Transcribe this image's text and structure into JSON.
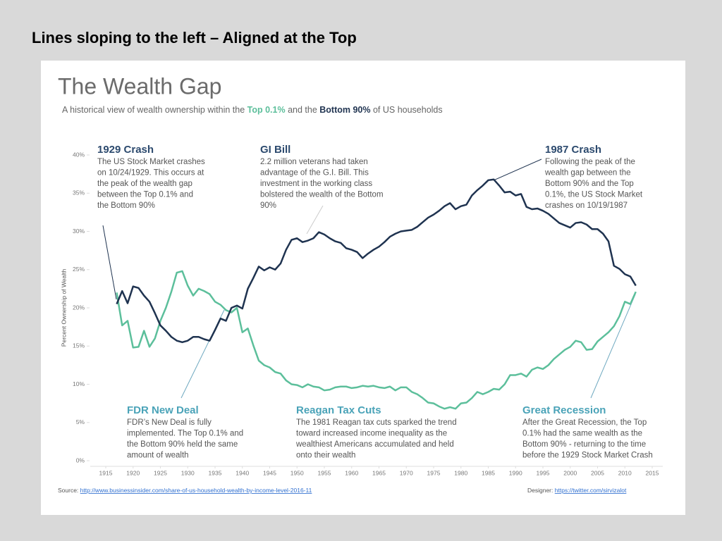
{
  "slide_title": "Lines sloping to the left – Aligned at the Top",
  "chart_data": {
    "type": "line",
    "title": "The Wealth Gap",
    "subtitle_parts": [
      "A historical view of wealth ownership within the ",
      "Top 0.1%",
      " and the ",
      "Bottom 90%",
      " of US households"
    ],
    "y_axis_label": "Percent Ownership of Wealth",
    "x": [
      1917,
      1918,
      1919,
      1920,
      1921,
      1922,
      1923,
      1924,
      1925,
      1926,
      1927,
      1928,
      1929,
      1930,
      1931,
      1932,
      1933,
      1934,
      1935,
      1936,
      1937,
      1938,
      1939,
      1940,
      1941,
      1942,
      1943,
      1944,
      1945,
      1946,
      1947,
      1948,
      1949,
      1950,
      1951,
      1952,
      1953,
      1954,
      1955,
      1956,
      1957,
      1958,
      1959,
      1960,
      1961,
      1962,
      1963,
      1964,
      1965,
      1966,
      1967,
      1968,
      1969,
      1970,
      1971,
      1972,
      1973,
      1974,
      1975,
      1976,
      1977,
      1978,
      1979,
      1980,
      1981,
      1982,
      1983,
      1984,
      1985,
      1986,
      1987,
      1988,
      1989,
      1990,
      1991,
      1992,
      1993,
      1994,
      1995,
      1996,
      1997,
      1998,
      1999,
      2000,
      2001,
      2002,
      2003,
      2004,
      2005,
      2006,
      2007,
      2008,
      2009,
      2010,
      2011,
      2012
    ],
    "series": [
      {
        "name": "Bottom 90%",
        "color": "#1f3350",
        "values": [
          20.5,
          22.2,
          20.6,
          22.8,
          22.6,
          21.6,
          20.8,
          19.3,
          17.7,
          17.0,
          16.2,
          15.7,
          15.5,
          15.7,
          16.2,
          16.2,
          15.9,
          15.7,
          17.1,
          18.6,
          18.3,
          20.0,
          20.3,
          19.9,
          22.5,
          23.9,
          25.4,
          24.9,
          25.3,
          25.0,
          25.8,
          27.6,
          28.9,
          29.1,
          28.6,
          28.8,
          29.1,
          29.9,
          29.6,
          29.1,
          28.7,
          28.5,
          27.8,
          27.6,
          27.3,
          26.5,
          27.1,
          27.6,
          28.0,
          28.6,
          29.3,
          29.7,
          30.0,
          30.1,
          30.2,
          30.6,
          31.2,
          31.8,
          32.2,
          32.7,
          33.3,
          33.7,
          32.9,
          33.3,
          33.5,
          34.7,
          35.4,
          36.0,
          36.7,
          36.8,
          36.0,
          35.1,
          35.2,
          34.7,
          34.9,
          33.2,
          32.9,
          33.0,
          32.7,
          32.3,
          31.7,
          31.1,
          30.8,
          30.5,
          31.1,
          31.2,
          30.9,
          30.3,
          30.3,
          29.7,
          28.7,
          25.5,
          25.1,
          24.4,
          24.1,
          22.9
        ]
      },
      {
        "name": "Top 0.1%",
        "color": "#5cbf9b",
        "values": [
          22.0,
          17.7,
          18.3,
          14.8,
          14.9,
          17.0,
          14.9,
          16.0,
          18.3,
          20.0,
          22.1,
          24.6,
          24.8,
          22.9,
          21.6,
          22.5,
          22.2,
          21.8,
          20.8,
          20.4,
          19.7,
          19.4,
          20.0,
          16.8,
          17.3,
          15.1,
          13.1,
          12.5,
          12.2,
          11.6,
          11.4,
          10.5,
          10.0,
          9.9,
          9.6,
          10.0,
          9.7,
          9.6,
          9.2,
          9.3,
          9.6,
          9.7,
          9.7,
          9.5,
          9.6,
          9.8,
          9.7,
          9.8,
          9.6,
          9.5,
          9.7,
          9.2,
          9.6,
          9.6,
          9.0,
          8.7,
          8.2,
          7.6,
          7.5,
          7.1,
          6.8,
          7.0,
          6.8,
          7.5,
          7.6,
          8.2,
          9.0,
          8.7,
          9.0,
          9.4,
          9.3,
          10.0,
          11.2,
          11.2,
          11.4,
          11.0,
          11.9,
          12.2,
          12.0,
          12.5,
          13.3,
          13.9,
          14.5,
          14.9,
          15.7,
          15.5,
          14.5,
          14.6,
          15.6,
          16.2,
          16.8,
          17.6,
          18.9,
          20.8,
          20.5,
          22.1
        ]
      }
    ],
    "xlim": [
      1912,
      2017
    ],
    "xticks": [
      1915,
      1920,
      1925,
      1930,
      1935,
      1940,
      1945,
      1950,
      1955,
      1960,
      1965,
      1970,
      1975,
      1980,
      1985,
      1990,
      1995,
      2000,
      2005,
      2010,
      2015
    ],
    "ylim": [
      0,
      40
    ],
    "yticks": [
      {
        "value": 0,
        "label": "0%"
      },
      {
        "value": 5,
        "label": "5%"
      },
      {
        "value": 10,
        "label": "10%"
      },
      {
        "value": 15,
        "label": "15%"
      },
      {
        "value": 20,
        "label": "20%"
      },
      {
        "value": 25,
        "label": "25%"
      },
      {
        "value": 30,
        "label": "30%"
      },
      {
        "value": 35,
        "label": "35%"
      },
      {
        "value": 40,
        "label": "40%"
      }
    ],
    "annotations": [
      {
        "title": "1929 Crash",
        "lines": [
          "The US Stock Market crashes",
          "on 10/24/1929. This occurs at",
          "the peak of the wealth gap",
          "between the Top 0.1% and",
          "the Bottom 90%"
        ]
      },
      {
        "title": "GI Bill",
        "lines": [
          "2.2 million veterans had taken",
          "advantage of the G.I. Bill. This",
          "investment in the working class",
          "bolstered the wealth of the Bottom",
          "90%"
        ]
      },
      {
        "title": "1987 Crash",
        "lines": [
          "Following the peak of the",
          "wealth gap between the",
          "Bottom 90% and the Top",
          "0.1%, the US Stock Market",
          "crashes on 10/19/1987"
        ]
      },
      {
        "title": "FDR New Deal",
        "lines": [
          "FDR’s New Deal is fully",
          "implemented. The Top 0.1% and",
          "the Bottom 90% held the same",
          "amount of wealth"
        ]
      },
      {
        "title": "Reagan Tax Cuts",
        "lines": [
          "The 1981 Reagan tax cuts sparked the trend",
          "toward increased income inequality as the",
          "wealthiest Americans accumulated and held",
          "onto their wealth"
        ]
      },
      {
        "title": "Great Recession",
        "lines": [
          "After the Great Recession, the Top",
          "0.1% had the same wealth as the",
          "Bottom 90% - returning to the time",
          "before the 1929 Stock Market Crash"
        ]
      }
    ],
    "source_label": "Source:",
    "source_url": "http://www.businessinsider.com/share-of-us-household-wealth-by-income-level-2016-11",
    "designer_label": "Designer:",
    "designer_url": "https://twitter.com/sirvizalot"
  }
}
